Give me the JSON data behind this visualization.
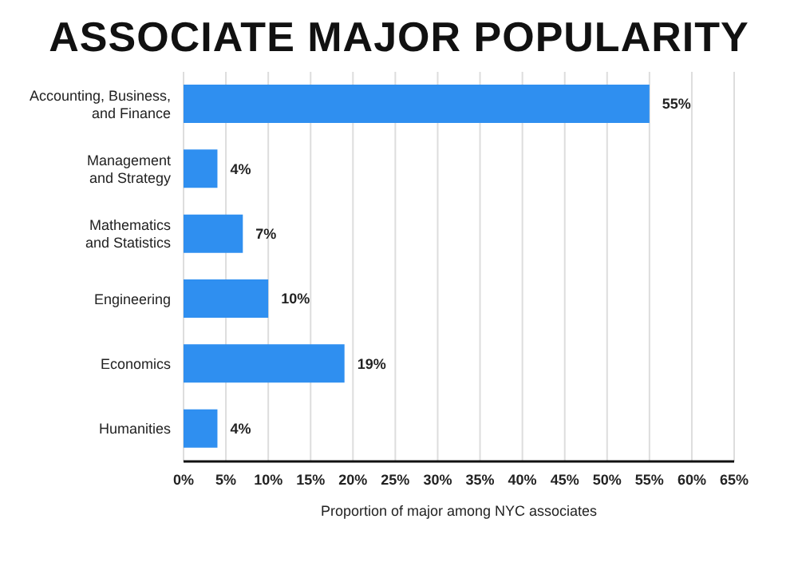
{
  "chart_data": {
    "type": "bar",
    "orientation": "horizontal",
    "title": "ASSOCIATE MAJOR POPULARITY",
    "xlabel": "Proportion of major among NYC associates",
    "categories": [
      "Accounting, Business,\nand Finance",
      "Management\nand Strategy",
      "Mathematics\nand Statistics",
      "Engineering",
      "Economics",
      "Humanities"
    ],
    "values": [
      55,
      4,
      7,
      10,
      19,
      4
    ],
    "value_labels": [
      "55%",
      "4%",
      "7%",
      "10%",
      "19%",
      "4%"
    ],
    "color": "#2f8ff0",
    "xlim": [
      0,
      65
    ],
    "xticks": [
      {
        "value": 0,
        "label": "0%"
      },
      {
        "value": 5,
        "label": "5%"
      },
      {
        "value": 10,
        "label": "10%"
      },
      {
        "value": 15,
        "label": "15%"
      },
      {
        "value": 20,
        "label": "20%"
      },
      {
        "value": 25,
        "label": "25%"
      },
      {
        "value": 30,
        "label": "30%"
      },
      {
        "value": 35,
        "label": "35%"
      },
      {
        "value": 40,
        "label": "40%"
      },
      {
        "value": 45,
        "label": "45%"
      },
      {
        "value": 50,
        "label": "50%"
      },
      {
        "value": 55,
        "label": "55%"
      },
      {
        "value": 60,
        "label": "60%"
      },
      {
        "value": 65,
        "label": "65%"
      }
    ],
    "grid": "x",
    "legend": false
  }
}
